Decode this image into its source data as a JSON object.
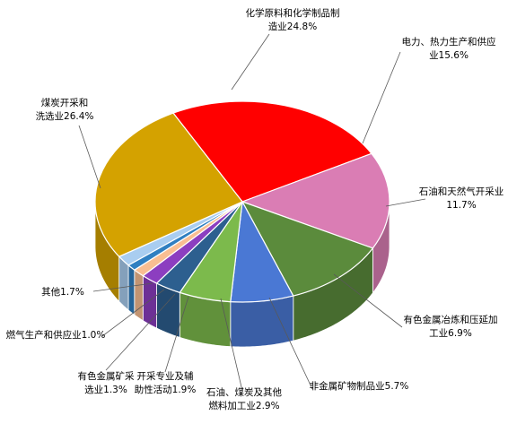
{
  "chart_data": {
    "type": "pie",
    "title": "",
    "legend": "none",
    "start_angle_deg": 242,
    "slices": [
      {
        "label": "化学原料和化学制品制造业",
        "label_lines": [
          "化学原料和化学制品制",
          "造业24.8%"
        ],
        "value": 24.8,
        "color": "#ff0000"
      },
      {
        "label": "电力、热力生产和供应业",
        "label_lines": [
          "电力、热力生产和供应",
          "业15.6%"
        ],
        "value": 15.6,
        "color": "#da7db4"
      },
      {
        "label": "石油和天然气开采业",
        "label_lines": [
          "石油和天然气开采业",
          "11.7%"
        ],
        "value": 11.7,
        "color": "#5b8b3c"
      },
      {
        "label": "有色金属冶炼和压延加工业",
        "label_lines": [
          "有色金属冶炼和压延加",
          "工业6.9%"
        ],
        "value": 6.9,
        "color": "#4a78d4"
      },
      {
        "label": "非金属矿物制品业",
        "label_lines": [
          "非金属矿物制品业5.7%"
        ],
        "value": 5.7,
        "color": "#7cba4c"
      },
      {
        "label": "石油、煤炭及其他燃料加工业",
        "label_lines": [
          "石油、煤炭及其他",
          "燃料加工业2.9%"
        ],
        "value": 2.9,
        "color": "#2d5f8f"
      },
      {
        "label": "开采专业及辅助性活动",
        "label_lines": [
          "开采专业及辅",
          "助性活动1.9%"
        ],
        "value": 1.9,
        "color": "#8c3ec0"
      },
      {
        "label": "有色金属矿采选业",
        "label_lines": [
          "有色金属矿采",
          "选业1.3%"
        ],
        "value": 1.3,
        "color": "#f9be92"
      },
      {
        "label": "燃气生产和供应业",
        "label_lines": [
          "燃气生产和供应业1.0%"
        ],
        "value": 1.0,
        "color": "#2f7fc1"
      },
      {
        "label": "其他",
        "label_lines": [
          "其他1.7%"
        ],
        "value": 1.7,
        "color": "#a9cdf0"
      },
      {
        "label": "煤炭开采和洗选业",
        "label_lines": [
          "煤炭开采和",
          "洗选业26.4%"
        ],
        "value": 26.4,
        "color": "#d4a200"
      }
    ]
  }
}
